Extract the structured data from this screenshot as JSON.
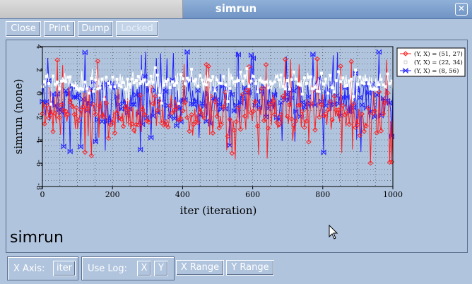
{
  "window": {
    "title": "simrun"
  },
  "toolbar": {
    "close": "Close",
    "print": "Print",
    "dump": "Dump",
    "locked": "Locked"
  },
  "plot_label": "simrun",
  "bottom": {
    "x_axis_label": "X Axis:",
    "x_axis_value": "iter",
    "use_log_label": "Use Log:",
    "log_x": "X",
    "log_y": "Y",
    "x_range": "X Range",
    "y_range": "Y Range"
  },
  "colors": {
    "series1": "#ff2020",
    "series2": "#ffffff",
    "series3": "#2020ff",
    "panel": "#b0c4de"
  },
  "chart_data": {
    "type": "line",
    "xlabel": "iter (iteration)",
    "ylabel": "simrun (none)",
    "xlim": [
      0,
      1000
    ],
    "ylim": [
      -8,
      4
    ],
    "xticks": [
      "0",
      "200",
      "400",
      "600",
      "800",
      "1000"
    ],
    "yticks": [
      "4",
      "2",
      "0",
      "-2",
      "-4",
      "-6",
      "-8"
    ],
    "grid": true,
    "legend_position": "top-right",
    "series": [
      {
        "name": "(Y, X) = (51, 27)",
        "color": "#ff2020",
        "marker": "diamond",
        "mean": -1.8,
        "spread": 1.6,
        "low": -6.2,
        "high": 3.0
      },
      {
        "name": "(Y, X) = (22, 34)",
        "color": "#ffffff",
        "marker": "square",
        "mean": 1.0,
        "spread": 0.7,
        "low": -1.0,
        "high": 2.2
      },
      {
        "name": "(Y, X) = (8, 56)",
        "color": "#2020ff",
        "marker": "bowtie",
        "mean": -0.6,
        "spread": 1.4,
        "low": -5.2,
        "high": 3.6
      }
    ]
  }
}
